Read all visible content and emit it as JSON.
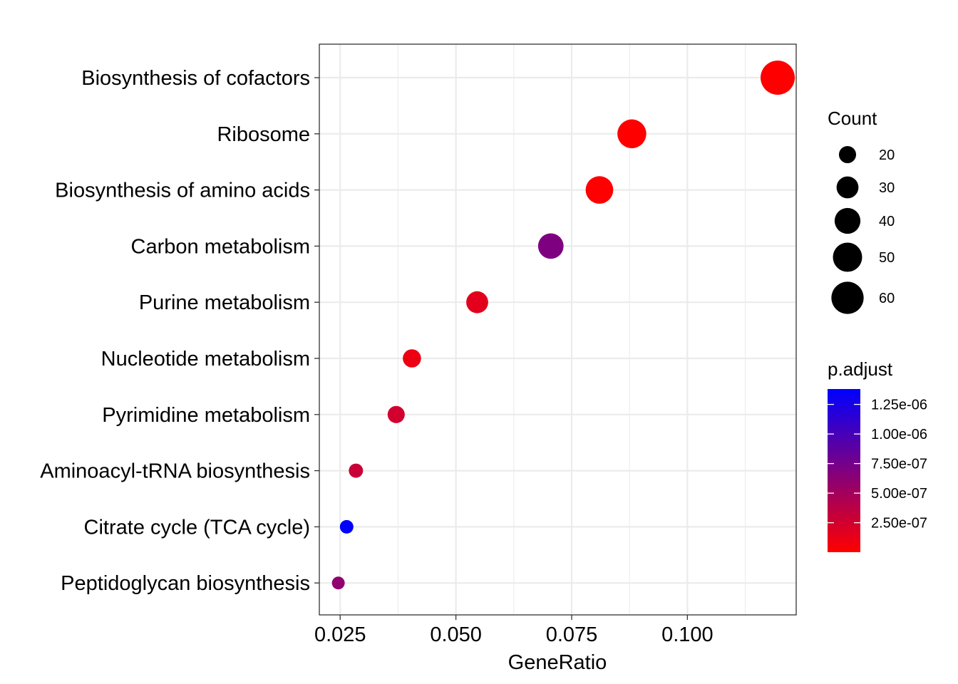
{
  "chart_data": {
    "type": "scatter",
    "xlabel": "GeneRatio",
    "ylabel": "",
    "xlim": [
      0.0205,
      0.1235
    ],
    "x_ticks": [
      0.025,
      0.05,
      0.075,
      0.1
    ],
    "x_tick_labels": [
      "0.025",
      "0.050",
      "0.075",
      "0.100"
    ],
    "categories": [
      "Biosynthesis of cofactors",
      "Ribosome",
      "Biosynthesis of amino acids",
      "Carbon metabolism",
      "Purine metabolism",
      "Nucleotide metabolism",
      "Pyrimidine metabolism",
      "Aminoacyl-tRNA biosynthesis",
      "Citrate cycle (TCA cycle)",
      "Peptidoglycan biosynthesis"
    ],
    "points": [
      {
        "term": "Biosynthesis of cofactors",
        "gene_ratio": 0.1195,
        "count": 67,
        "p_adjust": 1e-09
      },
      {
        "term": "Ribosome",
        "gene_ratio": 0.088,
        "count": 49,
        "p_adjust": 1e-09
      },
      {
        "term": "Biosynthesis of amino acids",
        "gene_ratio": 0.081,
        "count": 45,
        "p_adjust": 1e-09
      },
      {
        "term": "Carbon metabolism",
        "gene_ratio": 0.0705,
        "count": 39,
        "p_adjust": 7e-07
      },
      {
        "term": "Purine metabolism",
        "gene_ratio": 0.0546,
        "count": 30,
        "p_adjust": 1.5e-07
      },
      {
        "term": "Nucleotide metabolism",
        "gene_ratio": 0.0405,
        "count": 22,
        "p_adjust": 1e-07
      },
      {
        "term": "Pyrimidine metabolism",
        "gene_ratio": 0.0371,
        "count": 20,
        "p_adjust": 2.5e-07
      },
      {
        "term": "Aminoacyl-tRNA biosynthesis",
        "gene_ratio": 0.0284,
        "count": 15,
        "p_adjust": 3e-07
      },
      {
        "term": "Citrate cycle (TCA cycle)",
        "gene_ratio": 0.0264,
        "count": 14,
        "p_adjust": 1.38e-06
      },
      {
        "term": "Peptidoglycan biosynthesis",
        "gene_ratio": 0.0246,
        "count": 13,
        "p_adjust": 6e-07
      }
    ],
    "size_legend": {
      "title": "Count",
      "values": [
        20,
        30,
        40,
        50,
        60
      ],
      "labels": [
        "20",
        "30",
        "40",
        "50",
        "60"
      ]
    },
    "color_legend": {
      "title": "p.adjust",
      "ticks": [
        1.25e-06,
        1e-06,
        7.5e-07,
        5e-07,
        2.5e-07
      ],
      "labels": [
        "1.25e-06",
        "1.00e-06",
        "7.50e-07",
        "5.00e-07",
        "2.50e-07"
      ],
      "range": [
        1e-09,
        1.38e-06
      ],
      "low_color": "#ff0000",
      "high_color": "#0000ff"
    },
    "grid": true,
    "legend_position": "right"
  }
}
